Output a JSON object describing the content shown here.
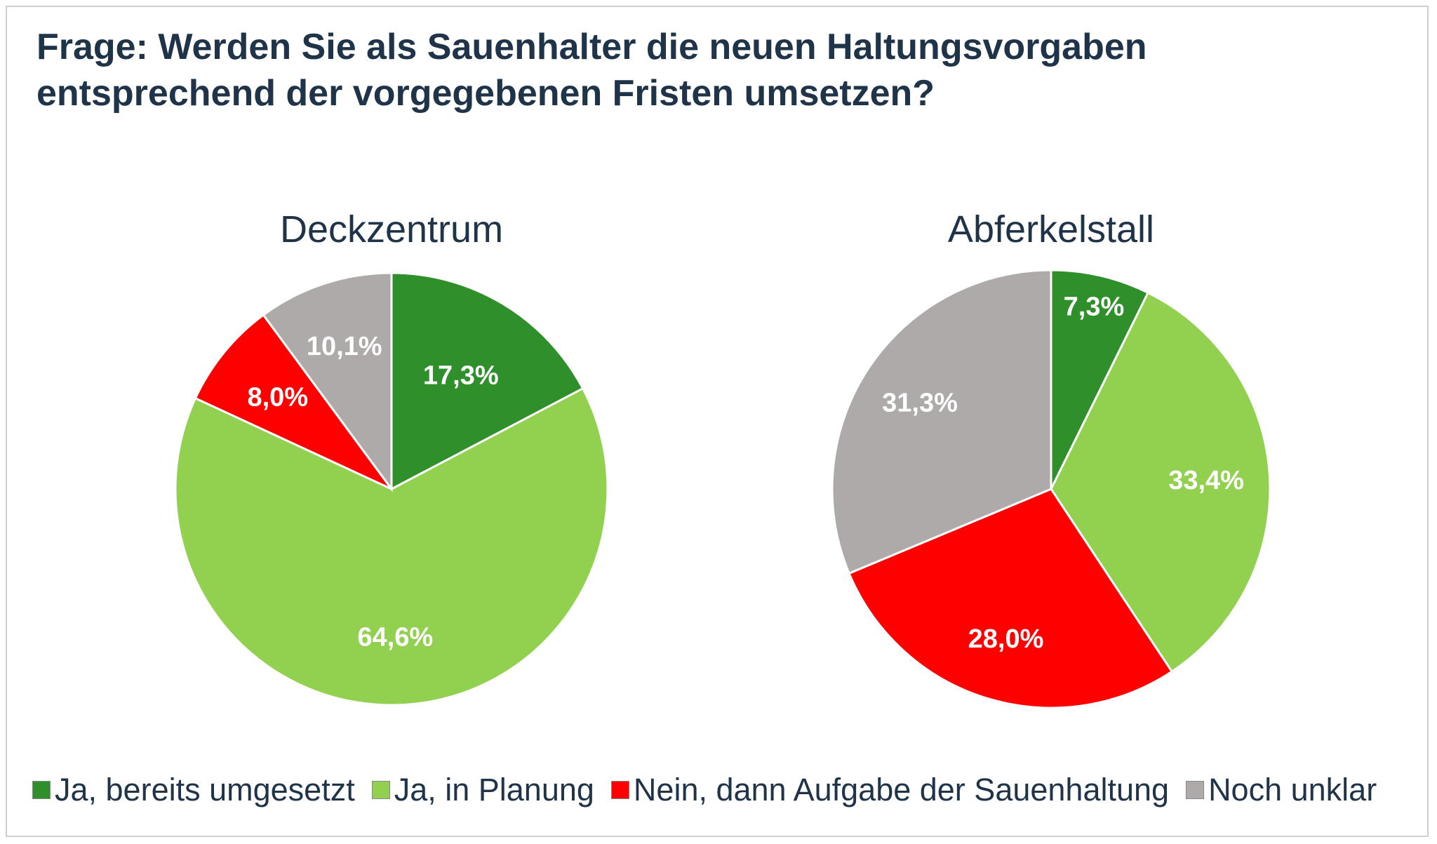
{
  "title_line1": "Frage: Werden Sie als Sauenhalter die neuen Haltungsvorgaben",
  "title_line2": "entsprechend der vorgegebenen Fristen umsetzen?",
  "categories": [
    "Ja, bereits umgesetzt",
    "Ja, in Planung",
    "Nein, dann Aufgabe der Sauenhaltung",
    "Noch unklar"
  ],
  "colors": [
    "#2f8f2a",
    "#92d050",
    "#ff0000",
    "#aeaaaa"
  ],
  "legend_placement": "bottom",
  "chart_data": [
    {
      "type": "pie",
      "title": "Deckzentrum",
      "categories": [
        "Ja, bereits umgesetzt",
        "Ja, in Planung",
        "Nein, dann Aufgabe der Sauenhaltung",
        "Noch unklar"
      ],
      "values": [
        17.3,
        64.6,
        8.0,
        10.1
      ],
      "labels": [
        "17,3%",
        "64,6%",
        "8,0%",
        "10,1%"
      ]
    },
    {
      "type": "pie",
      "title": "Abferkelstall",
      "categories": [
        "Ja, bereits umgesetzt",
        "Ja, in Planung",
        "Nein, dann Aufgabe der Sauenhaltung",
        "Noch unklar"
      ],
      "values": [
        7.3,
        33.4,
        28.0,
        31.3
      ],
      "labels": [
        "7,3%",
        "33,4%",
        "28,0%",
        "31,3%"
      ]
    }
  ]
}
